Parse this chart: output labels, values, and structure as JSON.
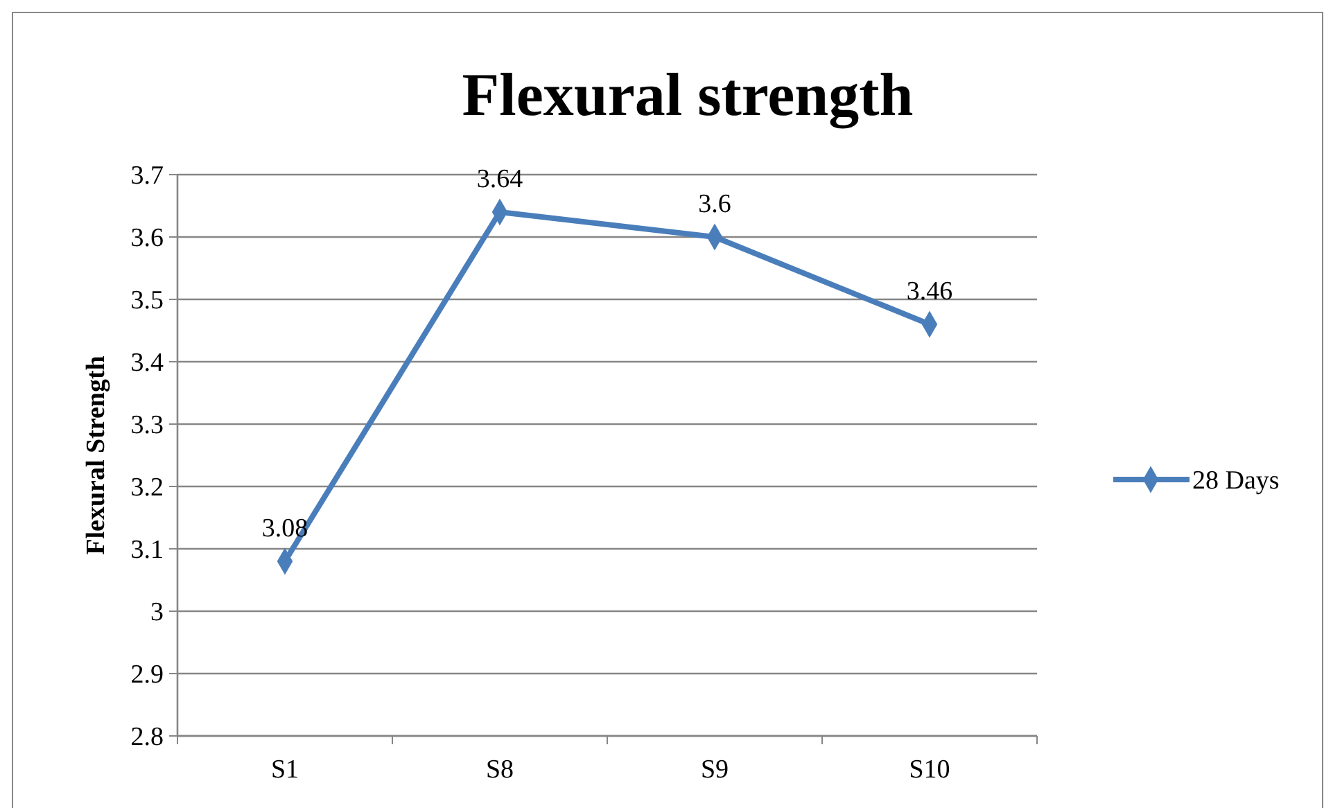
{
  "chart_data": {
    "type": "line",
    "title": "Flexural strength",
    "ylabel": "Flexural Strength",
    "categories": [
      "S1",
      "S8",
      "S9",
      "S10"
    ],
    "series": [
      {
        "name": "28 Days",
        "color": "#4a7ebb",
        "values": [
          3.08,
          3.64,
          3.6,
          3.46
        ]
      }
    ],
    "ylim": [
      2.8,
      3.7
    ],
    "yticks": [
      {
        "value": 2.8,
        "label": "2.8"
      },
      {
        "value": 2.9,
        "label": "2.9"
      },
      {
        "value": 3,
        "label": "3"
      },
      {
        "value": 3.1,
        "label": "3.1"
      },
      {
        "value": 3.2,
        "label": "3.2"
      },
      {
        "value": 3.3,
        "label": "3.3"
      },
      {
        "value": 3.4,
        "label": "3.4"
      },
      {
        "value": 3.5,
        "label": "3.5"
      },
      {
        "value": 3.6,
        "label": "3.6"
      },
      {
        "value": 3.7,
        "label": "3.7"
      }
    ],
    "grid": "y",
    "legend": "right",
    "marker": "diamond",
    "line_style": "solid",
    "data_labels": true
  }
}
